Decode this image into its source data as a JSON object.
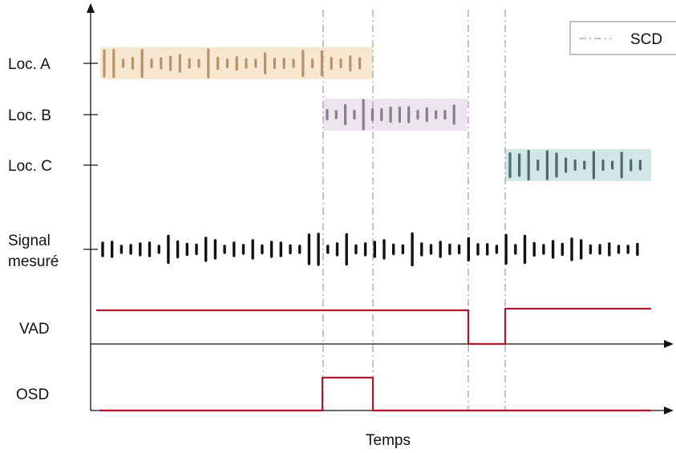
{
  "labels": {
    "loc_a": "Loc. A",
    "loc_b": "Loc. B",
    "loc_c": "Loc. C",
    "signal_line1": "Signal",
    "signal_line2": "mesuré",
    "vad": "VAD",
    "osd": "OSD",
    "time_axis": "Temps",
    "legend_scd": "SCD"
  },
  "colors": {
    "loc_a_wave": "#b8926a",
    "loc_a_band": "#f7e6d0",
    "loc_b_wave": "#8a7c90",
    "loc_b_band": "#ece5ee",
    "loc_c_wave": "#4f6a6c",
    "loc_c_band": "#d2e5e7",
    "signal_wave": "#111111",
    "vad_osd_line": "#b0182e",
    "axis": "#111111",
    "scd_line": "#9e9e9e"
  },
  "segments": {
    "vad_speech": [
      [
        0,
        0.76
      ],
      [
        0.83,
        1
      ]
    ],
    "osd_overlap": [
      [
        0.43,
        0.52
      ]
    ]
  }
}
